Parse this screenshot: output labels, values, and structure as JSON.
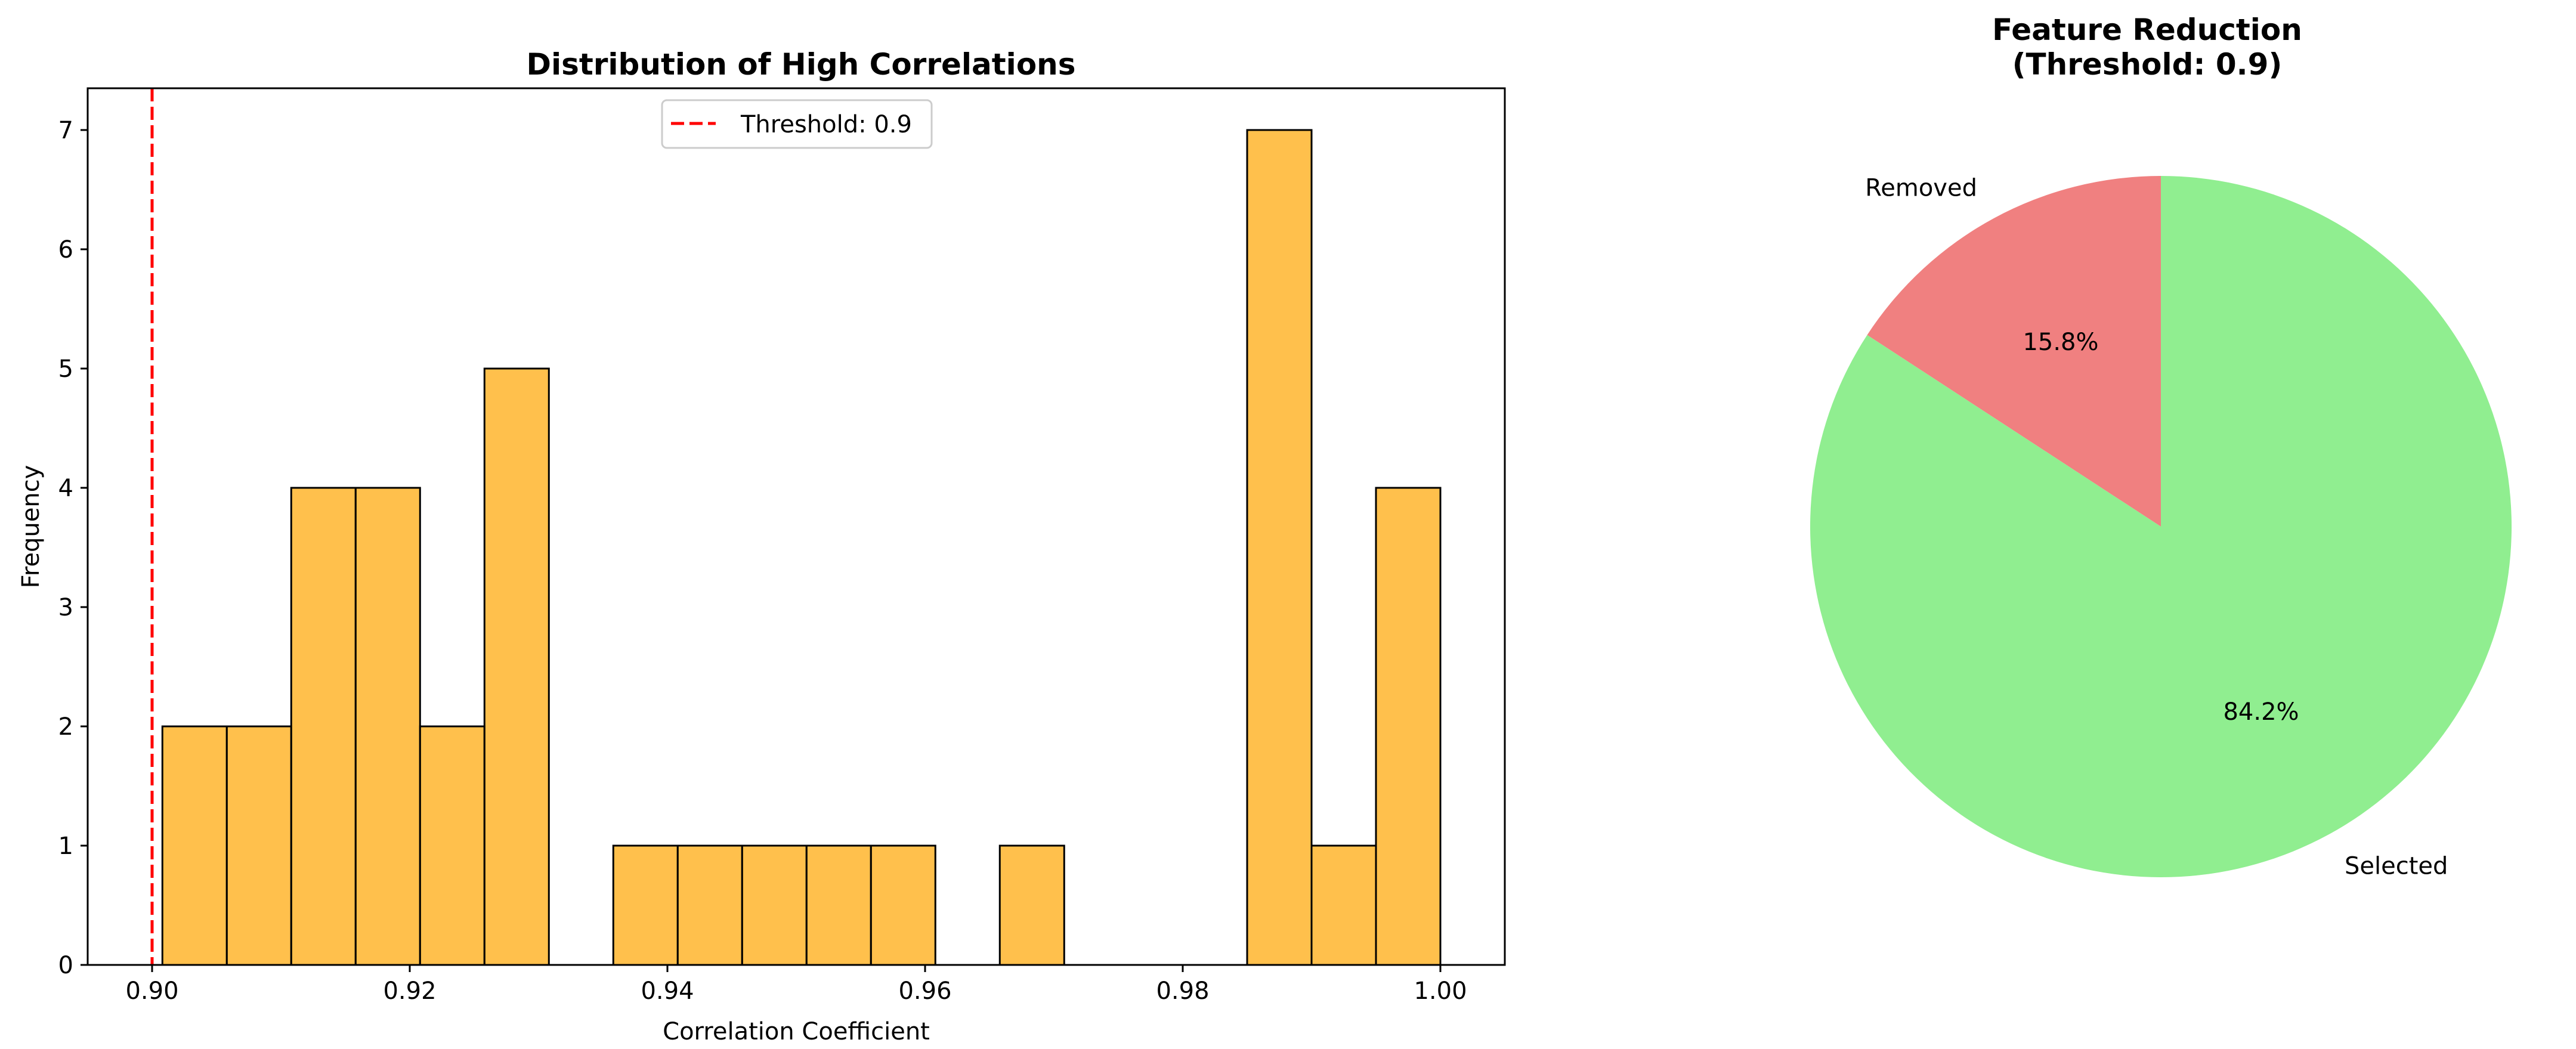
{
  "chart_data": [
    {
      "type": "bar",
      "title": "Distribution of High Correlations",
      "xlabel": "Correlation Coefficient",
      "ylabel": "Frequency",
      "xlim": [
        0.895,
        1.005
      ],
      "ylim": [
        0,
        7.35
      ],
      "x_ticks": [
        "0.90",
        "0.92",
        "0.94",
        "0.96",
        "0.98",
        "1.00"
      ],
      "y_ticks": [
        "0",
        "1",
        "2",
        "3",
        "4",
        "5",
        "6",
        "7"
      ],
      "bins": [
        {
          "x0": 0.9008,
          "x1": 0.9058,
          "count": 2
        },
        {
          "x0": 0.9058,
          "x1": 0.9108,
          "count": 2
        },
        {
          "x0": 0.9108,
          "x1": 0.9158,
          "count": 4
        },
        {
          "x0": 0.9158,
          "x1": 0.9208,
          "count": 4
        },
        {
          "x0": 0.9208,
          "x1": 0.9258,
          "count": 2
        },
        {
          "x0": 0.9258,
          "x1": 0.9308,
          "count": 5
        },
        {
          "x0": 0.9358,
          "x1": 0.9408,
          "count": 1
        },
        {
          "x0": 0.9408,
          "x1": 0.9458,
          "count": 1
        },
        {
          "x0": 0.9458,
          "x1": 0.9508,
          "count": 1
        },
        {
          "x0": 0.9508,
          "x1": 0.9558,
          "count": 1
        },
        {
          "x0": 0.9558,
          "x1": 0.9608,
          "count": 1
        },
        {
          "x0": 0.9658,
          "x1": 0.9708,
          "count": 1
        },
        {
          "x0": 0.985,
          "x1": 0.99,
          "count": 7
        },
        {
          "x0": 0.99,
          "x1": 0.995,
          "count": 1
        },
        {
          "x0": 0.995,
          "x1": 1.0,
          "count": 4
        }
      ],
      "bar_color": "#ffa500",
      "threshold": {
        "value": 0.9,
        "label": "Threshold: 0.9",
        "color": "#ff0000"
      },
      "legend_position": "upper center",
      "grid": false
    },
    {
      "type": "pie",
      "title_line1": "Feature Reduction",
      "title_line2": "(Threshold: 0.9)",
      "slices": [
        {
          "label": "Removed",
          "percent": 15.8,
          "pct_label": "15.8%",
          "color": "#f08080"
        },
        {
          "label": "Selected",
          "percent": 84.2,
          "pct_label": "84.2%",
          "color": "#90ee90"
        }
      ]
    }
  ]
}
